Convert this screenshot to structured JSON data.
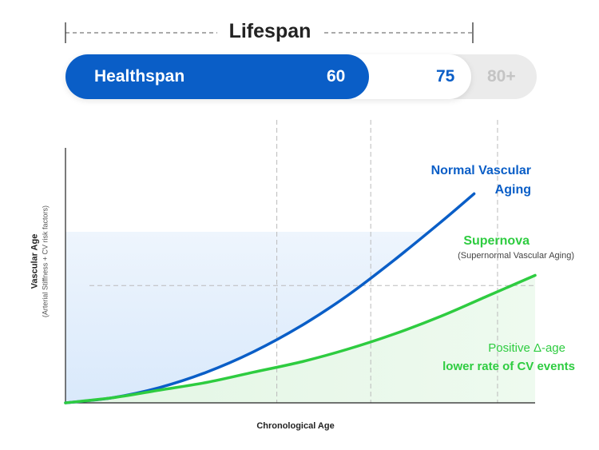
{
  "header": {
    "lifespan_label": "Lifespan",
    "healthspan_label": "Healthspan",
    "age_60": "60",
    "age_75": "75",
    "age_80_plus": "80+"
  },
  "chart_data": {
    "type": "line",
    "title": "Lifespan",
    "xlabel": "Chronological Age",
    "ylabel": "Vascular Age",
    "ylabel_sub": "(Arterial Stiffness + CV risk factors)",
    "xlim": [
      0,
      1
    ],
    "ylim": [
      0,
      1
    ],
    "grid": false,
    "reference_lines": {
      "vertical_x": [
        0.45,
        0.65,
        0.92
      ],
      "horizontal_y": 0.46
    },
    "series": [
      {
        "name": "Normal Vascular Aging",
        "color": "#0a5ec7",
        "x": [
          0,
          0.1,
          0.2,
          0.3,
          0.4,
          0.5,
          0.6,
          0.7,
          0.8,
          0.87
        ],
        "y": [
          0,
          0.02,
          0.06,
          0.12,
          0.2,
          0.3,
          0.42,
          0.56,
          0.71,
          0.82
        ]
      },
      {
        "name": "Supernova",
        "color": "#2ecc40",
        "x": [
          0,
          0.1,
          0.2,
          0.3,
          0.4,
          0.5,
          0.6,
          0.7,
          0.8,
          0.9,
          1.0
        ],
        "y": [
          0,
          0.02,
          0.05,
          0.08,
          0.12,
          0.16,
          0.21,
          0.27,
          0.34,
          0.42,
          0.5
        ]
      }
    ],
    "annotations": {
      "normal_title": "Normal Vascular Aging",
      "supernova_title": "Supernova",
      "supernova_sub": "(Supernormal Vascular Aging)",
      "positive_delta": "Positive  Δ-age",
      "lower_rate": "lower rate of CV events"
    }
  }
}
